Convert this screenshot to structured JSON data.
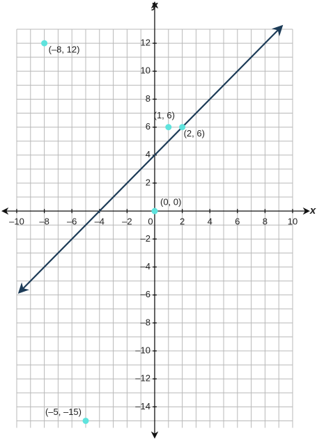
{
  "chart_data": {
    "type": "scatter",
    "x_label": "x",
    "y_label": "y",
    "xlim": [
      -10,
      10
    ],
    "ylim": [
      -15.5,
      13
    ],
    "xticks": [
      {
        "value": -10,
        "label": "–10"
      },
      {
        "value": -8,
        "label": "–8"
      },
      {
        "value": -6,
        "label": "–6"
      },
      {
        "value": -4,
        "label": "–4"
      },
      {
        "value": -2,
        "label": "–2"
      },
      0,
      2,
      4,
      6,
      8,
      10
    ],
    "yticks": [
      {
        "value": -14,
        "label": "–14"
      },
      {
        "value": -12,
        "label": "–12"
      },
      {
        "value": -10,
        "label": "–10"
      },
      {
        "value": -8,
        "label": "–8"
      },
      {
        "value": -6,
        "label": "–6"
      },
      {
        "value": -4,
        "label": "–4"
      },
      {
        "value": -2,
        "label": "–2"
      },
      2,
      4,
      6,
      8,
      10,
      12
    ],
    "grid": true,
    "line": {
      "color": "#1c3b57",
      "x": [
        -9.8,
        9.2
      ],
      "y": [
        -5.8,
        13.2
      ]
    },
    "points": {
      "color": "#5fe3dd",
      "x": [
        -8,
        1,
        2,
        0,
        -5
      ],
      "y": [
        12,
        6,
        6,
        0,
        -15
      ],
      "labels": [
        "(–8, 12)",
        "(1, 6)",
        "(2, 6)",
        "(0, 0)",
        "(–5, –15)"
      ]
    }
  }
}
